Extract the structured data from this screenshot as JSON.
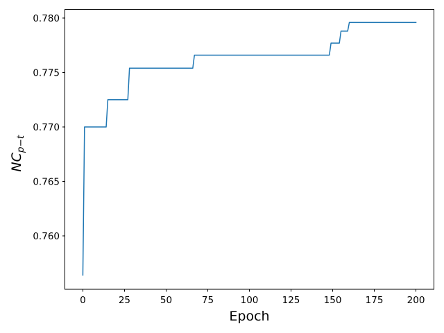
{
  "figure": {
    "background_color": "#ffffff",
    "spine_color": "#000000",
    "text_color": "#000000"
  },
  "chart_data": {
    "type": "line",
    "title": "",
    "xlabel": "Epoch",
    "ylabel": "NC_{p-t}",
    "ylabel_parts": {
      "main": "NC",
      "subscript": "p−t"
    },
    "x_ticks": [
      0,
      25,
      50,
      75,
      100,
      125,
      150,
      175,
      200
    ],
    "x_tick_labels": [
      "0",
      "25",
      "50",
      "75",
      "100",
      "125",
      "150",
      "175",
      "200"
    ],
    "y_ticks": [
      0.76,
      0.765,
      0.77,
      0.775,
      0.78
    ],
    "y_tick_labels": [
      "0.760",
      "0.765",
      "0.770",
      "0.775",
      "0.780"
    ],
    "xlim": [
      -10.8,
      210.8
    ],
    "ylim": [
      0.7551,
      0.7808
    ],
    "grid": false,
    "legend": false,
    "series": [
      {
        "color": "#1f77b4",
        "line_width": 1.5,
        "points": [
          [
            0,
            0.7564
          ],
          [
            1,
            0.77
          ],
          [
            14,
            0.77
          ],
          [
            15,
            0.7725
          ],
          [
            27,
            0.7725
          ],
          [
            28,
            0.7754
          ],
          [
            66,
            0.7754
          ],
          [
            67,
            0.7766
          ],
          [
            148,
            0.7766
          ],
          [
            149,
            0.7777
          ],
          [
            154,
            0.7777
          ],
          [
            155,
            0.7788
          ],
          [
            159,
            0.7788
          ],
          [
            160,
            0.7796
          ],
          [
            200,
            0.7796
          ]
        ]
      }
    ]
  }
}
